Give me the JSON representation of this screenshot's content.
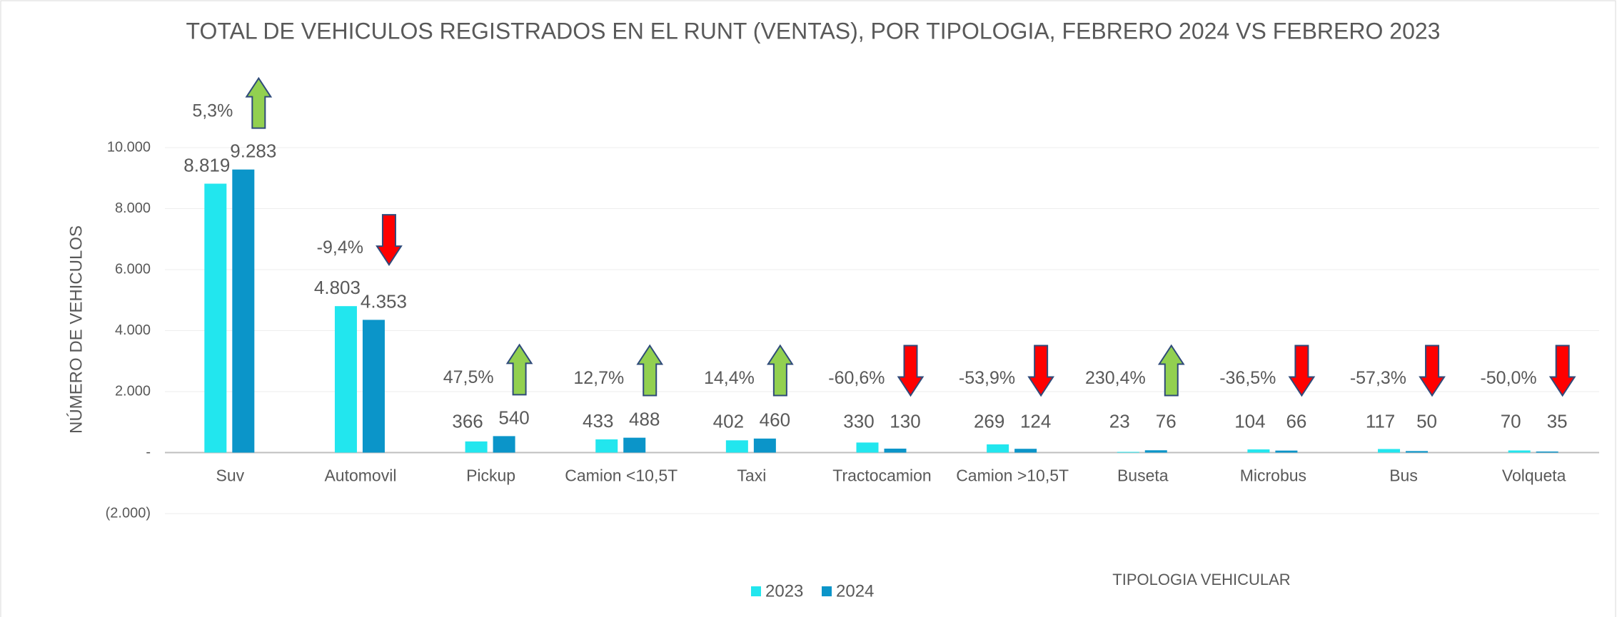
{
  "chart_data": {
    "type": "bar",
    "title": "TOTAL DE VEHICULOS REGISTRADOS EN EL RUNT (VENTAS), POR TIPOLOGIA, FEBRERO 2024 VS FEBRERO 2023",
    "y_label": "NÚMERO DE VEHICULOS",
    "x_label": "TIPOLOGIA VEHICULAR",
    "categories": [
      "Suv",
      "Automovil",
      "Pickup",
      "Camion <10,5T",
      "Taxi",
      "Tractocamion",
      "Camion >10,5T",
      "Buseta",
      "Microbus",
      "Bus",
      "Volqueta"
    ],
    "series": [
      {
        "name": "2023",
        "color": "#22E6EE",
        "values": [
          8819,
          4803,
          366,
          433,
          402,
          330,
          269,
          23,
          104,
          117,
          70
        ],
        "value_labels": [
          "8.819",
          "4.803",
          "366",
          "433",
          "402",
          "330",
          "269",
          "23",
          "104",
          "117",
          "70"
        ]
      },
      {
        "name": "2024",
        "color": "#0B95C9",
        "values": [
          9283,
          4353,
          540,
          488,
          460,
          130,
          124,
          76,
          66,
          50,
          35
        ],
        "value_labels": [
          "9.283",
          "4.353",
          "540",
          "488",
          "460",
          "130",
          "124",
          "76",
          "66",
          "50",
          "35"
        ]
      }
    ],
    "changes": {
      "values": [
        5.3,
        -9.4,
        47.5,
        12.7,
        14.4,
        -60.6,
        -53.9,
        230.4,
        -36.5,
        -57.3,
        -50.0
      ],
      "value_labels": [
        "5,3%",
        "-9,4%",
        "47,5%",
        "12,7%",
        "14,4%",
        "-60,6%",
        "-53,9%",
        "230,4%",
        "-36,5%",
        "-57,3%",
        "-50,0%"
      ],
      "up_color": "#92D050",
      "down_color": "#FF0000"
    },
    "ylim": [
      -2000,
      10000
    ],
    "yticks": [
      {
        "value": -2000,
        "label": "(2.000)"
      },
      {
        "value": 0,
        "label": "-"
      },
      {
        "value": 2000,
        "label": "2.000"
      },
      {
        "value": 4000,
        "label": "4.000"
      },
      {
        "value": 6000,
        "label": "6.000"
      },
      {
        "value": 8000,
        "label": "8.000"
      },
      {
        "value": 10000,
        "label": "10.000"
      }
    ],
    "grid": true,
    "legend": "bottom"
  }
}
